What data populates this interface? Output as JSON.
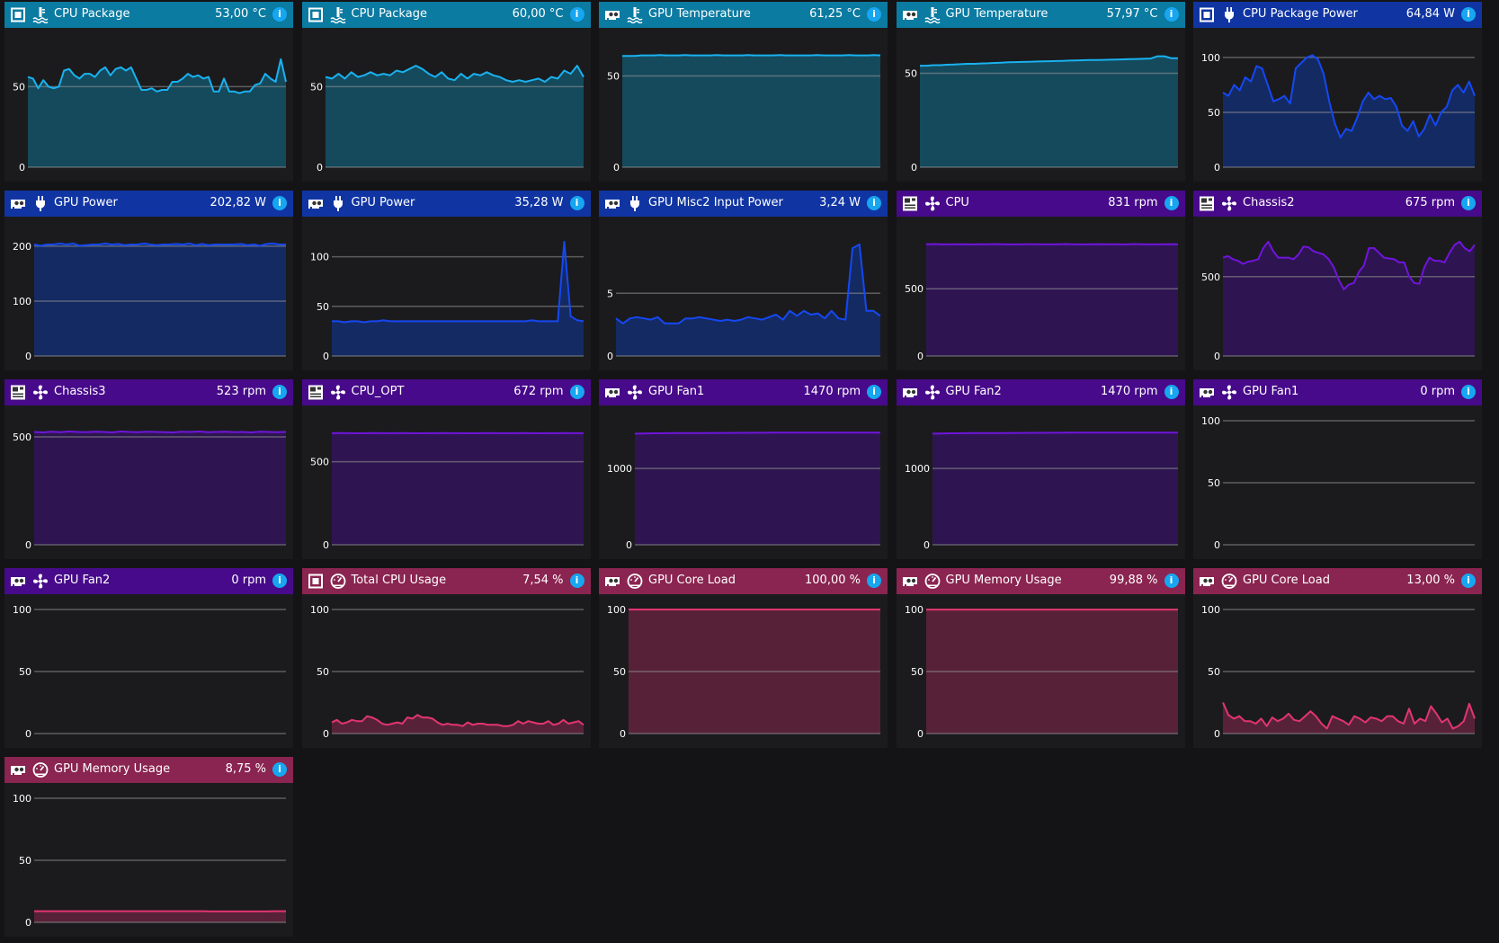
{
  "themes": {
    "temp": {
      "header": "#0b7ba2",
      "line": "#19b2f0",
      "fill": "#15495c"
    },
    "power": {
      "header": "#1035a3",
      "line": "#1548f2",
      "fill": "#142a62"
    },
    "fan": {
      "header": "#470a8a",
      "line": "#7014dc",
      "fill": "#2e1551"
    },
    "load": {
      "header": "#8a2450",
      "line": "#e2356f",
      "fill": "#572238"
    }
  },
  "tiles": [
    {
      "device": "cpu-icon",
      "type": "thermometer-icon",
      "theme": "temp",
      "name": "CPU Package",
      "value": "53,00 °C",
      "ymax": 77,
      "ticks": [
        0,
        50
      ],
      "series": [
        56,
        55,
        49,
        54,
        50,
        49,
        50,
        60,
        61,
        57,
        55,
        58,
        58,
        56,
        60,
        62,
        57,
        61,
        62,
        60,
        62,
        55,
        48,
        48,
        49,
        47,
        48,
        48,
        53,
        53,
        55,
        58,
        56,
        57,
        55,
        56,
        47,
        47,
        55,
        47,
        47,
        46,
        47,
        47,
        51,
        52,
        58,
        55,
        53,
        67,
        53
      ]
    },
    {
      "device": "cpu-icon",
      "type": "thermometer-icon",
      "theme": "temp",
      "name": "CPU Package",
      "value": "60,00 °C",
      "ymax": 77,
      "ticks": [
        0,
        50
      ],
      "series": [
        56,
        55,
        58,
        55,
        59,
        56,
        57,
        59,
        57,
        58,
        57,
        60,
        59,
        61,
        63,
        61,
        58,
        56,
        59,
        55,
        54,
        58,
        55,
        58,
        57,
        59,
        57,
        56,
        54,
        53,
        54,
        53,
        54,
        55,
        53,
        56,
        55,
        60,
        58,
        63,
        56
      ]
    },
    {
      "device": "gpu-icon",
      "type": "thermometer-icon",
      "theme": "temp",
      "name": "GPU Temperature",
      "value": "61,25 °C",
      "ymax": 68,
      "ticks": [
        0,
        50
      ],
      "series": [
        61,
        61,
        61,
        61.3,
        61.3,
        61.3,
        61.5,
        61.3,
        61.3,
        61.3,
        61.5,
        61.3,
        61.3,
        61.3,
        61.3,
        61.5,
        61.3,
        61.3,
        61.3,
        61.3,
        61.5,
        61.3,
        61.3,
        61.3,
        61.3,
        61.5,
        61.3,
        61.3,
        61.3,
        61.3,
        61.3,
        61.5,
        61.3,
        61.3,
        61.3,
        61.3,
        61.5,
        61.3,
        61.3,
        61.3,
        61.5,
        61.3
      ]
    },
    {
      "device": "gpu-icon",
      "type": "thermometer-icon",
      "theme": "temp",
      "name": "GPU Temperature",
      "value": "57,97 °C",
      "ymax": 66,
      "ticks": [
        0,
        50
      ],
      "series": [
        54,
        54,
        54.3,
        54.3,
        54.5,
        54.6,
        54.8,
        55,
        55,
        55.2,
        55.3,
        55.5,
        55.6,
        55.8,
        55.9,
        56,
        56.1,
        56.2,
        56.3,
        56.4,
        56.5,
        56.6,
        56.7,
        56.8,
        56.9,
        57,
        57,
        57.1,
        57.2,
        57.3,
        57.4,
        57.5,
        57.6,
        57.7,
        57.8,
        59,
        59,
        58,
        58
      ]
    },
    {
      "device": "cpu-icon",
      "type": "plug-icon",
      "theme": "power",
      "name": "CPU Package Power",
      "value": "64,84 W",
      "ymax": 113,
      "ticks": [
        0,
        50,
        100
      ],
      "series": [
        68,
        65,
        75,
        70,
        82,
        78,
        92,
        90,
        75,
        60,
        62,
        65,
        58,
        90,
        95,
        100,
        102,
        98,
        85,
        60,
        40,
        27,
        35,
        33,
        45,
        60,
        68,
        62,
        65,
        62,
        63,
        55,
        38,
        33,
        42,
        28,
        35,
        48,
        38,
        50,
        55,
        70,
        75,
        68,
        78,
        65
      ]
    },
    {
      "device": "gpu-icon",
      "type": "plug-icon",
      "theme": "power",
      "name": "GPU Power",
      "value": "202,82 W",
      "ymax": 226,
      "ticks": [
        0,
        100,
        200
      ],
      "series": [
        203,
        201,
        203,
        203,
        205,
        203,
        205,
        201,
        202,
        203,
        203,
        205,
        203,
        204,
        202,
        203,
        203,
        205,
        203,
        202,
        203,
        203,
        204,
        203,
        205,
        202,
        204,
        202,
        203,
        203,
        203,
        203,
        204,
        202,
        203,
        201,
        204,
        205,
        203,
        203
      ]
    },
    {
      "device": "gpu-icon",
      "type": "plug-icon",
      "theme": "power",
      "name": "GPU Power",
      "value": "35,28 W",
      "ymax": 125,
      "ticks": [
        0,
        50,
        100
      ],
      "series": [
        35,
        35,
        34,
        35,
        35,
        34,
        35,
        35,
        36,
        35,
        35,
        35,
        35,
        35,
        35,
        35,
        35,
        35,
        35,
        35,
        35,
        35,
        35,
        35,
        35,
        35,
        35,
        35,
        35,
        35,
        35,
        36,
        35,
        35,
        35,
        35,
        115,
        40,
        36,
        35
      ]
    },
    {
      "device": "gpu-icon",
      "type": "plug-icon",
      "theme": "power",
      "name": "GPU Misc2 Input Power",
      "value": "3,24 W",
      "ymax": 9.9,
      "ticks": [
        0,
        5
      ],
      "series": [
        3.0,
        2.6,
        3.0,
        3.1,
        3.0,
        2.9,
        3.1,
        2.6,
        2.6,
        2.6,
        3.0,
        3.0,
        3.1,
        3.0,
        2.9,
        2.8,
        2.9,
        2.8,
        2.9,
        3.1,
        3.0,
        2.9,
        3.1,
        3.3,
        2.9,
        3.6,
        3.2,
        3.6,
        3.3,
        3.4,
        3.0,
        3.6,
        3.0,
        2.9,
        8.6,
        8.9,
        3.6,
        3.6,
        3.2
      ]
    },
    {
      "device": "motherboard-icon",
      "type": "fan-icon",
      "theme": "fan",
      "name": "CPU",
      "value": "831 rpm",
      "ymax": 923,
      "ticks": [
        0,
        500
      ],
      "series": [
        831,
        833,
        830,
        831,
        832,
        830,
        831,
        831,
        833,
        831,
        830,
        831,
        832,
        831,
        830,
        831,
        833,
        831,
        830,
        831,
        832,
        831,
        831,
        830,
        833,
        831,
        830,
        831,
        832,
        831
      ]
    },
    {
      "device": "motherboard-icon",
      "type": "fan-icon",
      "theme": "fan",
      "name": "Chassis2",
      "value": "675 rpm",
      "ymax": 782,
      "ticks": [
        0,
        500
      ],
      "series": [
        620,
        630,
        610,
        600,
        580,
        595,
        600,
        610,
        680,
        720,
        660,
        620,
        620,
        620,
        610,
        640,
        690,
        685,
        660,
        650,
        640,
        610,
        560,
        480,
        420,
        450,
        460,
        530,
        570,
        680,
        680,
        650,
        620,
        615,
        610,
        590,
        590,
        500,
        460,
        455,
        560,
        620,
        600,
        600,
        590,
        650,
        700,
        720,
        680,
        660,
        700
      ]
    },
    {
      "device": "motherboard-icon",
      "type": "fan-icon",
      "theme": "fan",
      "name": "Chassis3",
      "value": "523 rpm",
      "ymax": 575,
      "ticks": [
        0,
        500
      ],
      "series": [
        523,
        521,
        524,
        522,
        525,
        523,
        522,
        524,
        523,
        521,
        525,
        523,
        522,
        524,
        523,
        522,
        521,
        524,
        523,
        525,
        522,
        523,
        524,
        522,
        523,
        521,
        524,
        523,
        522,
        523
      ]
    },
    {
      "device": "motherboard-icon",
      "type": "fan-icon",
      "theme": "fan",
      "name": "CPU_OPT",
      "value": "672 rpm",
      "ymax": 747,
      "ticks": [
        0,
        500
      ],
      "series": [
        672,
        673,
        672,
        671,
        672,
        673,
        672,
        672,
        673,
        672,
        671,
        672,
        672,
        673,
        672,
        672,
        671,
        672,
        673,
        672,
        672,
        672,
        673,
        672,
        671,
        672,
        672,
        673,
        672,
        672
      ]
    },
    {
      "device": "gpu-icon",
      "type": "fan-icon",
      "theme": "fan",
      "name": "GPU Fan1",
      "value": "1470 rpm",
      "ymax": 1625,
      "ticks": [
        0,
        1000
      ],
      "series": [
        1455,
        1458,
        1460,
        1460,
        1462,
        1462,
        1463,
        1464,
        1464,
        1465,
        1465,
        1466,
        1466,
        1467,
        1467,
        1468,
        1468,
        1468,
        1469,
        1469,
        1470,
        1470,
        1470,
        1470,
        1470,
        1470,
        1470,
        1470
      ]
    },
    {
      "device": "gpu-icon",
      "type": "fan-icon",
      "theme": "fan",
      "name": "GPU Fan2",
      "value": "1470 rpm",
      "ymax": 1625,
      "ticks": [
        0,
        1000
      ],
      "series": [
        1455,
        1458,
        1460,
        1460,
        1462,
        1462,
        1463,
        1464,
        1464,
        1465,
        1465,
        1466,
        1466,
        1467,
        1467,
        1468,
        1468,
        1468,
        1469,
        1469,
        1470,
        1470,
        1470,
        1470,
        1470,
        1470,
        1470,
        1470
      ]
    },
    {
      "device": "gpu-icon",
      "type": "fan-icon",
      "theme": "fan",
      "name": "GPU Fan1",
      "value": "0 rpm",
      "ymax": 100,
      "ticks": [
        0,
        50,
        100
      ],
      "series": []
    },
    {
      "device": "gpu-icon",
      "type": "fan-icon",
      "theme": "fan",
      "name": "GPU Fan2",
      "value": "0 rpm",
      "ymax": 100,
      "ticks": [
        0,
        50,
        100
      ],
      "series": []
    },
    {
      "device": "cpu-icon",
      "type": "gauge-icon",
      "theme": "load",
      "name": "Total CPU Usage",
      "value": "7,54 %",
      "ymax": 100,
      "ticks": [
        0,
        50,
        100
      ],
      "series": [
        9,
        11,
        8,
        9,
        11,
        10,
        10,
        14,
        13,
        11,
        8,
        7,
        8,
        9,
        8,
        13,
        12,
        15,
        13,
        13,
        12,
        9,
        7,
        8,
        7,
        7,
        6,
        9,
        7,
        8,
        8,
        7,
        7,
        7,
        6,
        6,
        7,
        10,
        8,
        10,
        9,
        8,
        8,
        10,
        7,
        8,
        11,
        8,
        9,
        10,
        7
      ]
    },
    {
      "device": "gpu-icon",
      "type": "gauge-icon",
      "theme": "load",
      "name": "GPU Core Load",
      "value": "100,00 %",
      "ymax": 100,
      "ticks": [
        0,
        50,
        100
      ],
      "series": [
        100,
        100,
        100,
        100,
        100,
        100,
        100,
        100,
        100,
        100,
        100,
        100,
        100,
        100,
        100,
        100,
        100,
        100,
        100,
        100
      ]
    },
    {
      "device": "gpu-icon",
      "type": "gauge-icon",
      "theme": "load",
      "name": "GPU Memory Usage",
      "value": "99,88 %",
      "ymax": 100,
      "ticks": [
        0,
        50,
        100
      ],
      "series": [
        99.9,
        99.9,
        99.9,
        99.9,
        99.9,
        99.9,
        99.9,
        99.9,
        99.9,
        99.9,
        99.9,
        99.9,
        99.9,
        99.9,
        99.9,
        99.9,
        99.9,
        99.9,
        99.9,
        99.9
      ]
    },
    {
      "device": "gpu-icon",
      "type": "gauge-icon",
      "theme": "load",
      "name": "GPU Core Load",
      "value": "13,00 %",
      "ymax": 100,
      "ticks": [
        0,
        50,
        100
      ],
      "series": [
        25,
        15,
        12,
        14,
        10,
        10,
        8,
        12,
        6,
        13,
        10,
        12,
        16,
        11,
        10,
        14,
        18,
        14,
        8,
        4,
        14,
        12,
        10,
        7,
        14,
        12,
        9,
        13,
        12,
        10,
        14,
        14,
        10,
        8,
        20,
        8,
        12,
        10,
        22,
        16,
        9,
        12,
        4,
        6,
        10,
        24,
        12
      ]
    },
    {
      "device": "gpu-icon",
      "type": "gauge-icon",
      "theme": "load",
      "name": "GPU Memory Usage",
      "value": "8,75 %",
      "ymax": 100,
      "ticks": [
        0,
        50,
        100
      ],
      "series": [
        9,
        9,
        9,
        9,
        9,
        9,
        9,
        9,
        9,
        9,
        9,
        9,
        9,
        9,
        9,
        9,
        9,
        8.8,
        8.8,
        8.8,
        8.8,
        8.8,
        8.8,
        9,
        9
      ]
    }
  ]
}
